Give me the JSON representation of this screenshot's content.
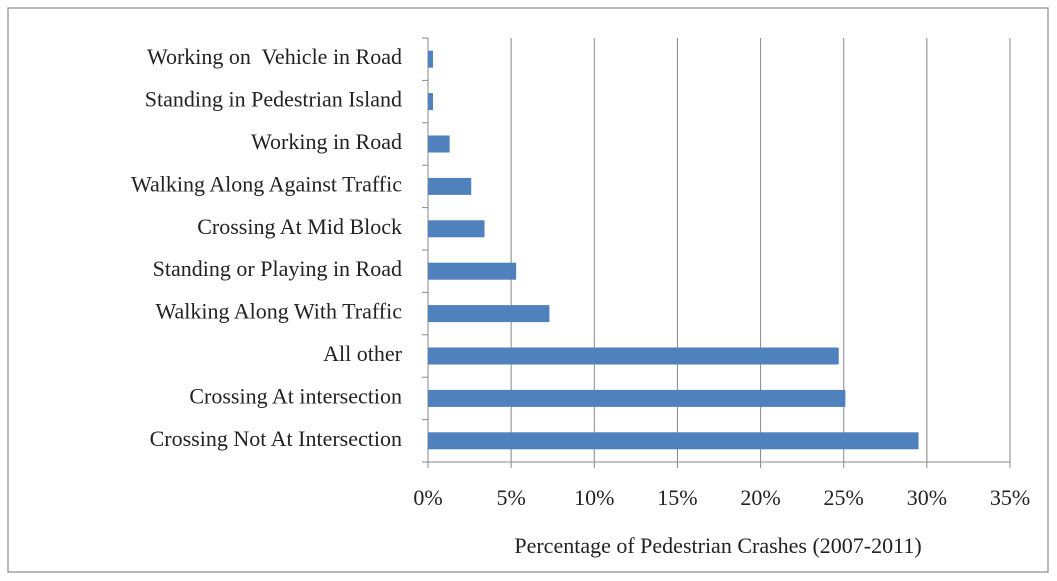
{
  "chart_data": {
    "type": "bar",
    "orientation": "horizontal",
    "x_label": "Percentage of Pedestrian Crashes (2007-2011)",
    "categories": [
      "Working on  Vehicle in Road",
      "Standing in Pedestrian Island",
      "Working in Road",
      "Walking Along Against Traffic",
      "Crossing At Mid Block",
      "Standing or Playing in Road",
      "Walking Along With Traffic",
      "All other",
      "Crossing At intersection",
      "Crossing Not At Intersection"
    ],
    "values": [
      0.3,
      0.3,
      1.3,
      2.6,
      3.4,
      5.3,
      7.3,
      24.7,
      25.1,
      29.5
    ],
    "color": "#4f81bd",
    "xlim": [
      0,
      35
    ],
    "xticks": [
      {
        "value": 0,
        "label": "0%"
      },
      {
        "value": 5,
        "label": "5%"
      },
      {
        "value": 10,
        "label": "10%"
      },
      {
        "value": 15,
        "label": "15%"
      },
      {
        "value": 20,
        "label": "20%"
      },
      {
        "value": 25,
        "label": "25%"
      },
      {
        "value": 30,
        "label": "30%"
      },
      {
        "value": 35,
        "label": "35%"
      }
    ],
    "grid": true
  }
}
